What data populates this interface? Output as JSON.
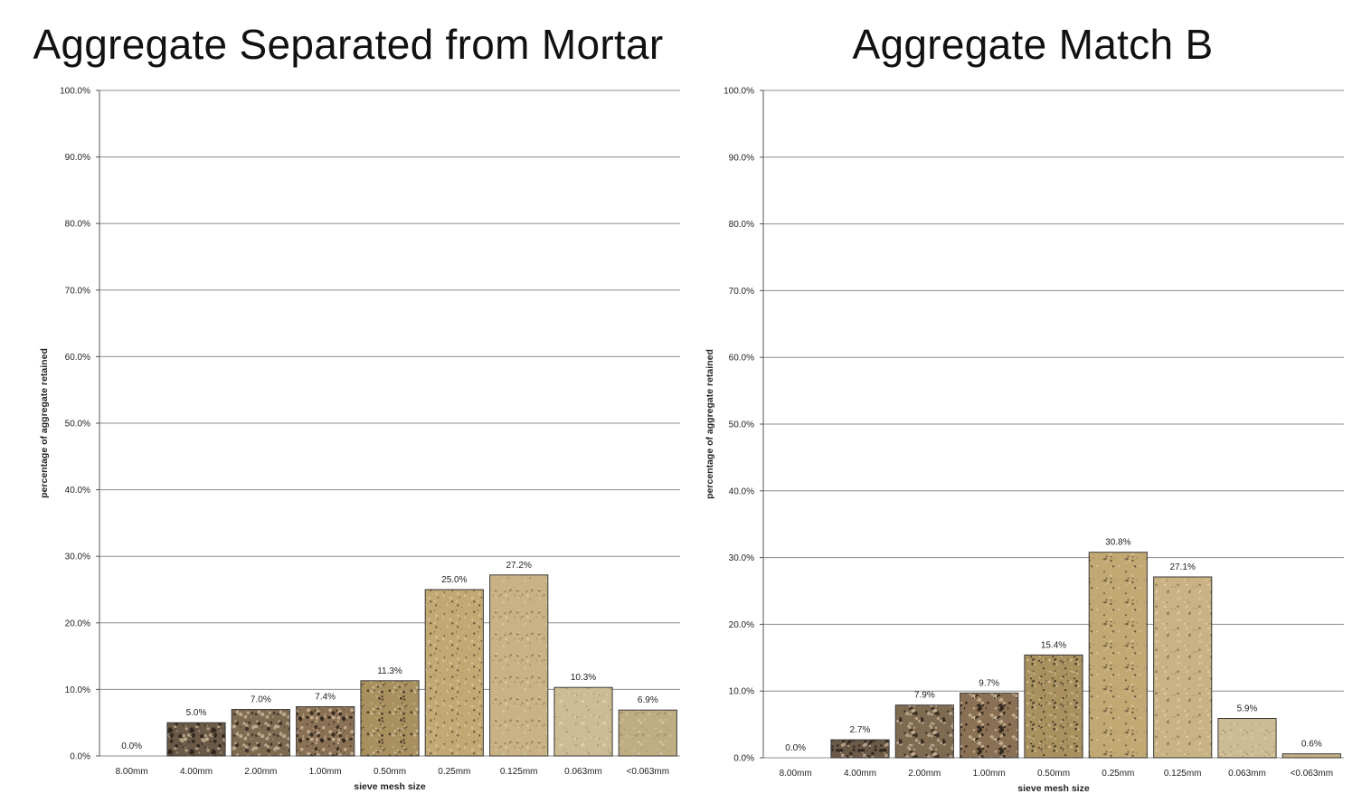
{
  "charts": [
    {
      "title": "Aggregate Separated from Mortar",
      "chart_data": {
        "type": "bar",
        "categories": [
          "8.00mm",
          "4.00mm",
          "2.00mm",
          "1.00mm",
          "0.50mm",
          "0.25mm",
          "0.125mm",
          "0.063mm",
          "<0.063mm"
        ],
        "values": [
          0.0,
          5.0,
          7.0,
          7.4,
          11.3,
          25.0,
          27.2,
          10.3,
          6.9
        ],
        "data_labels": [
          "0.0%",
          "5.0%",
          "7.0%",
          "7.4%",
          "11.3%",
          "25.0%",
          "27.2%",
          "10.3%",
          "6.9%"
        ],
        "yticks": [
          "0.0%",
          "10.0%",
          "20.0%",
          "30.0%",
          "40.0%",
          "50.0%",
          "60.0%",
          "70.0%",
          "80.0%",
          "90.0%",
          "100.0%"
        ],
        "xlabel": "sieve mesh size",
        "ylabel": "percentage of aggregate retained",
        "ylim": [
          0,
          100
        ],
        "grid": true
      }
    },
    {
      "title": "Aggregate Match B",
      "chart_data": {
        "type": "bar",
        "categories": [
          "8.00mm",
          "4.00mm",
          "2.00mm",
          "1.00mm",
          "0.50mm",
          "0.25mm",
          "0.125mm",
          "0.063mm",
          "<0.063mm"
        ],
        "values": [
          0.0,
          2.7,
          7.9,
          9.7,
          15.4,
          30.8,
          27.1,
          5.9,
          0.6
        ],
        "data_labels": [
          "0.0%",
          "2.7%",
          "7.9%",
          "9.7%",
          "15.4%",
          "30.8%",
          "27.1%",
          "5.9%",
          "0.6%"
        ],
        "yticks": [
          "0.0%",
          "10.0%",
          "20.0%",
          "30.0%",
          "40.0%",
          "50.0%",
          "60.0%",
          "70.0%",
          "80.0%",
          "90.0%",
          "100.0%"
        ],
        "xlabel": "sieve mesh size",
        "ylabel": "percentage of aggregate retained",
        "ylim": [
          0,
          100
        ],
        "grid": true
      }
    }
  ],
  "bar_textures": [
    {
      "base": "#7a6650",
      "speck": "#2e241c",
      "light": "#b9a489"
    },
    {
      "base": "#6b5a48",
      "speck": "#2a221a",
      "light": "#c0ab90"
    },
    {
      "base": "#7f6a52",
      "speck": "#33291f",
      "light": "#c4b095"
    },
    {
      "base": "#8a7155",
      "speck": "#2c2218",
      "light": "#cbb596"
    },
    {
      "base": "#a8905f",
      "speck": "#3a2e20",
      "light": "#d4c39c"
    },
    {
      "base": "#c2a873",
      "speck": "#5a4a33",
      "light": "#dcc99f"
    },
    {
      "base": "#c9b283",
      "speck": "#8a7555",
      "light": "#e0d0ab"
    },
    {
      "base": "#cdbc93",
      "speck": "#a8966f",
      "light": "#e3d6b6"
    },
    {
      "base": "#bfae84",
      "speck": "#9c8a62",
      "light": "#d9cba7"
    }
  ]
}
